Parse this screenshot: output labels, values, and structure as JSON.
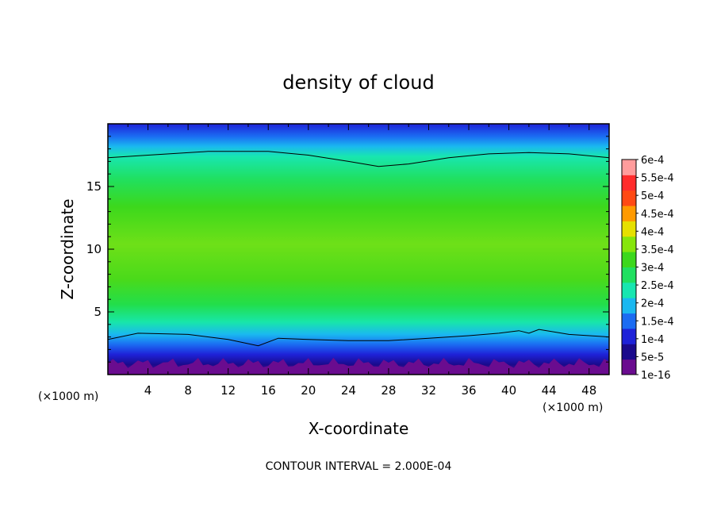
{
  "chart_data": {
    "type": "heatmap",
    "title": "density of cloud",
    "xlabel": "X-coordinate",
    "ylabel": "Z-coordinate",
    "x_unit": "(×1000 m)",
    "y_unit": "(×1000 m)",
    "xlim": [
      0,
      50
    ],
    "ylim": [
      0,
      20
    ],
    "x_ticks": [
      4,
      8,
      12,
      16,
      20,
      24,
      28,
      32,
      36,
      40,
      44,
      48
    ],
    "y_ticks": [
      5,
      10,
      15
    ],
    "colorbar": {
      "levels": [
        "1e-16",
        "5e-5",
        "1e-4",
        "1.5e-4",
        "2e-4",
        "2.5e-4",
        "3e-4",
        "3.5e-4",
        "4e-4",
        "4.5e-4",
        "5e-4",
        "5.5e-4",
        "6e-4"
      ],
      "colors": [
        "#6a0c8f",
        "#1a0a8c",
        "#1e22d8",
        "#1b6cf2",
        "#1ab8f0",
        "#18e6b0",
        "#20e060",
        "#3cd81c",
        "#86e60c",
        "#e6e000",
        "#ff9a00",
        "#ff4a14",
        "#ff2c2c",
        "#ff9c9c"
      ]
    },
    "contour_levels": [
      0.0002
    ],
    "contour_interval_note": "CONTOUR INTERVAL = 2.000E-04"
  }
}
